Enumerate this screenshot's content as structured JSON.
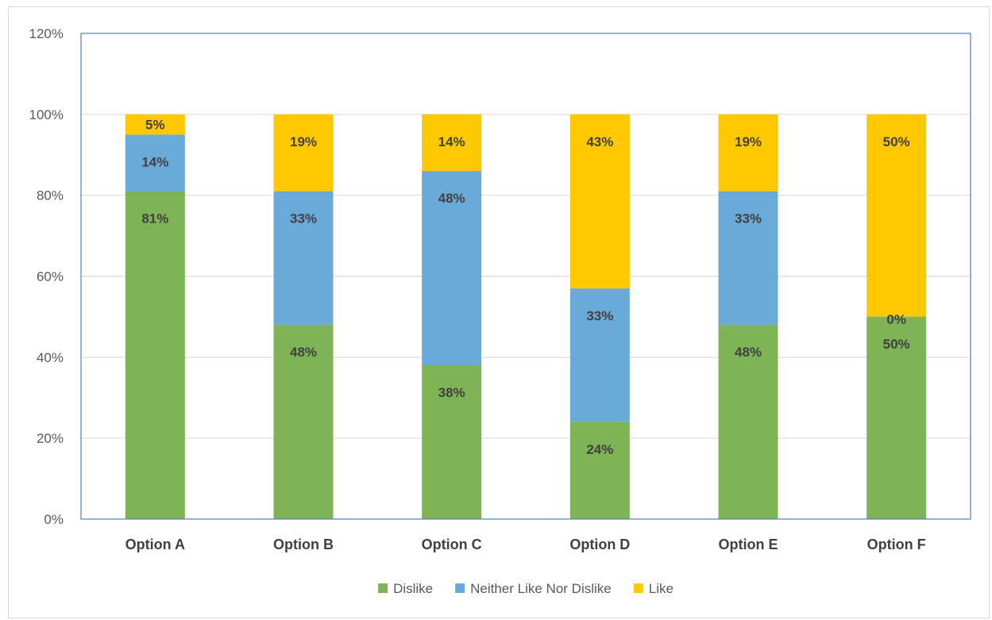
{
  "chart_data": {
    "type": "bar",
    "stacked": true,
    "categories": [
      "Option A",
      "Option B",
      "Option C",
      "Option D",
      "Option E",
      "Option F"
    ],
    "series": [
      {
        "name": "Dislike",
        "color": "#7EB356",
        "values": [
          81,
          48,
          38,
          24,
          48,
          50
        ],
        "labels": [
          "81%",
          "48%",
          "38%",
          "24%",
          "48%",
          "50%"
        ]
      },
      {
        "name": "Neither Like Nor Dislike",
        "color": "#6AAAD9",
        "values": [
          14,
          33,
          48,
          33,
          33,
          0
        ],
        "labels": [
          "14%",
          "33%",
          "48%",
          "33%",
          "33%",
          "0%"
        ]
      },
      {
        "name": "Like",
        "color": "#FFC800",
        "values": [
          5,
          19,
          14,
          43,
          19,
          50
        ],
        "labels": [
          "5%",
          "19%",
          "14%",
          "43%",
          "19%",
          "50%"
        ]
      }
    ],
    "ylim": [
      0,
      120
    ],
    "yticks": [
      "0%",
      "20%",
      "40%",
      "60%",
      "80%",
      "100%",
      "120%"
    ],
    "grid": true,
    "legend": "bottom",
    "plot_border_color": "#4F81BD",
    "gridline_color": "#d9d9d9"
  }
}
